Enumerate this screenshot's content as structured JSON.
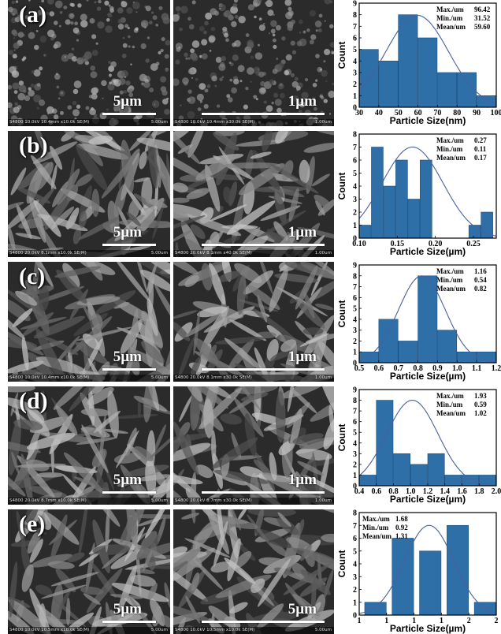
{
  "panels": [
    {
      "label": "(a)",
      "sem_left": {
        "scale": "5µm",
        "footer": "S4800 10.0kV 10.4mm x10.0k SE(M)",
        "footer_right": "5.00um"
      },
      "sem_right": {
        "scale": "1µm",
        "footer": "S4800 10.0kV 10.4mm x30.0k SE(M)",
        "footer_right": "1.00um"
      },
      "stats": {
        "max": "Max./um",
        "max_v": "96.42",
        "min": "Min./um",
        "min_v": "31.52",
        "mean": "Mean/um",
        "mean_v": "59.60"
      }
    },
    {
      "label": "(b)",
      "sem_left": {
        "scale": "5µm",
        "footer": "S4800 20.0kV 8.1mm x10.0k SE(M)",
        "footer_right": "5.00um"
      },
      "sem_right": {
        "scale": "1µm",
        "footer": "S4800 20.0kV 8.1mm x40.0k SE(M)",
        "footer_right": "1.00um"
      },
      "stats": {
        "max": "Max./um",
        "max_v": "0.27",
        "min": "Min./um",
        "min_v": "0.11",
        "mean": "Mean/um",
        "mean_v": "0.17"
      }
    },
    {
      "label": "(c)",
      "sem_left": {
        "scale": "5µm",
        "footer": "S4800 10.0kV 10.4mm x10.0k SE(M)",
        "footer_right": "5.00um"
      },
      "sem_right": {
        "scale": "1µm",
        "footer": "S4800 20.0kV 8.1mm x30.0k SE(M)",
        "footer_right": "1.00um"
      },
      "stats": {
        "max": "Max./um",
        "max_v": "1.16",
        "min": "Min./um",
        "min_v": "0.54",
        "mean": "Mean/um",
        "mean_v": "0.82"
      }
    },
    {
      "label": "(d)",
      "sem_left": {
        "scale": "5µm",
        "footer": "S4800 20.0kV 8.7mm x10.0k SE(M)",
        "footer_right": "5.00um"
      },
      "sem_right": {
        "scale": "1µm",
        "footer": "S4800 20.0kV 8.7mm x30.0k SE(M)",
        "footer_right": "1.00um"
      },
      "stats": {
        "max": "Max./um",
        "max_v": "1.93",
        "min": "Min./um",
        "min_v": "0.59",
        "mean": "Mean/um",
        "mean_v": "1.02"
      }
    },
    {
      "label": "(e)",
      "sem_left": {
        "scale": "5µm",
        "footer": "S4800 10.0kV 10.5mm x10.0k SE(M)",
        "footer_right": "5.00um"
      },
      "sem_right": {
        "scale": "5µm",
        "footer": "S4800 10.0kV 10.5mm x10.0k SE(M)",
        "footer_right": "5.00um"
      },
      "stats": {
        "max": "Max./um",
        "max_v": "1.68",
        "min": "Min./um",
        "min_v": "0.92",
        "mean": "Mean/um",
        "mean_v": "1.31"
      }
    }
  ],
  "colors": {
    "bar": "#2e6fa7",
    "curve": "#4a5fa0",
    "sem_dark": "#2b2b2b",
    "sem_light": "#a8a8a8"
  },
  "chart_data": [
    {
      "type": "bar",
      "xlabel": "Particle Size(nm)",
      "ylabel": "Count",
      "xlim": [
        30,
        100
      ],
      "ylim": [
        0,
        9
      ],
      "xticks": [
        30,
        40,
        50,
        60,
        70,
        80,
        90,
        100
      ],
      "yticks": [
        0,
        1,
        2,
        3,
        4,
        5,
        6,
        7,
        8,
        9
      ],
      "bin_width": 10,
      "x": [
        35,
        45,
        55,
        65,
        75,
        85,
        95
      ],
      "values": [
        5,
        4,
        8,
        6,
        3,
        3,
        1
      ],
      "fit": {
        "type": "normal",
        "mean": 59.6,
        "sd": 16,
        "peak": 7.95
      }
    },
    {
      "type": "bar",
      "xlabel": "Particle Size(µm)",
      "ylabel": "Count",
      "xlim": [
        0.1,
        0.28
      ],
      "ylim": [
        0,
        8
      ],
      "xticks": [
        0.1,
        0.15,
        0.2,
        0.25
      ],
      "yticks": [
        0,
        1,
        2,
        3,
        4,
        5,
        6,
        7,
        8
      ],
      "bin_width": 0.016,
      "x": [
        0.108,
        0.124,
        0.14,
        0.156,
        0.172,
        0.188,
        0.204,
        0.22,
        0.236,
        0.252,
        0.268
      ],
      "values": [
        1,
        7,
        4,
        6,
        3,
        6,
        0,
        0,
        0,
        1,
        2
      ],
      "fit": {
        "type": "normal",
        "mean": 0.17,
        "sd": 0.04,
        "peak": 7
      }
    },
    {
      "type": "bar",
      "xlabel": "Particle Size(µm)",
      "ylabel": "Count",
      "xlim": [
        0.5,
        1.2
      ],
      "ylim": [
        0,
        9
      ],
      "xticks": [
        0.5,
        0.6,
        0.7,
        0.8,
        0.9,
        1.0,
        1.1,
        1.2
      ],
      "yticks": [
        0,
        1,
        2,
        3,
        4,
        5,
        6,
        7,
        8,
        9
      ],
      "bin_width": 0.1,
      "x": [
        0.55,
        0.65,
        0.75,
        0.85,
        0.95,
        1.05,
        1.15
      ],
      "values": [
        1,
        4,
        2,
        8,
        3,
        1,
        1
      ],
      "fit": {
        "type": "normal",
        "mean": 0.82,
        "sd": 0.12,
        "peak": 8
      }
    },
    {
      "type": "bar",
      "xlabel": "Particle Size(µm)",
      "ylabel": "Count",
      "xlim": [
        0.4,
        2.0
      ],
      "ylim": [
        0,
        9
      ],
      "xticks": [
        0.4,
        0.6,
        0.8,
        1.0,
        1.2,
        1.4,
        1.6,
        1.8,
        2.0
      ],
      "yticks": [
        0,
        1,
        2,
        3,
        4,
        5,
        6,
        7,
        8,
        9
      ],
      "bin_width": 0.2,
      "x": [
        0.5,
        0.7,
        0.9,
        1.1,
        1.3,
        1.5,
        1.7,
        1.9
      ],
      "values": [
        1,
        8,
        3,
        2,
        3,
        1,
        1,
        1
      ],
      "fit": {
        "type": "normal",
        "mean": 1.02,
        "sd": 0.3,
        "peak": 8
      }
    },
    {
      "type": "bar",
      "xlabel": "Particle Size(µm)",
      "ylabel": "Count",
      "xlim": [
        0.8,
        1.8
      ],
      "ylim": [
        0,
        8
      ],
      "xticks": [
        0.8,
        1.0,
        1.2,
        1.4,
        1.6,
        1.8
      ],
      "yticks": [
        0,
        1,
        2,
        3,
        4,
        5,
        6,
        7,
        8
      ],
      "bin_width": 0.16,
      "x": [
        0.92,
        1.12,
        1.32,
        1.52,
        1.72
      ],
      "values": [
        1,
        6,
        5,
        7,
        1
      ],
      "fit": {
        "type": "normal",
        "mean": 1.31,
        "sd": 0.18,
        "peak": 7
      }
    }
  ]
}
